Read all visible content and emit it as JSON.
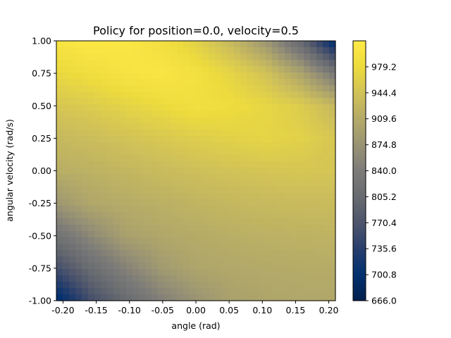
{
  "chart_data": {
    "type": "heatmap",
    "title": "Policy for position=0.0, velocity=0.5",
    "xlabel": "angle (rad)",
    "ylabel": "angular velocity (rad/s)",
    "xlim": [
      -0.21,
      0.21
    ],
    "ylim": [
      -1.0,
      1.0
    ],
    "x_ticks": [
      "-0.20",
      "-0.15",
      "-0.10",
      "-0.05",
      "0.00",
      "0.05",
      "0.10",
      "0.15",
      "0.20"
    ],
    "x_tick_values": [
      -0.2,
      -0.15,
      -0.1,
      -0.05,
      0.0,
      0.05,
      0.1,
      0.15,
      0.2
    ],
    "y_ticks": [
      "-1.00",
      "-0.75",
      "-0.50",
      "-0.25",
      "0.00",
      "0.25",
      "0.50",
      "0.75",
      "1.00"
    ],
    "y_tick_values": [
      -1.0,
      -0.75,
      -0.5,
      -0.25,
      0.0,
      0.25,
      0.5,
      0.75,
      1.0
    ],
    "colormap": "cividis",
    "colorbar": {
      "min": 666.0,
      "max": 1014.0,
      "ticks": [
        "666.0",
        "700.8",
        "735.6",
        "770.4",
        "805.2",
        "840.0",
        "874.8",
        "909.6",
        "944.4",
        "979.2"
      ],
      "tick_values": [
        666.0,
        700.8,
        735.6,
        770.4,
        805.2,
        840.0,
        874.8,
        909.6,
        944.4,
        979.2
      ]
    },
    "values_grid_note": "",
    "values": [
      [
        1000,
        1010,
        1005,
        990,
        965,
        930,
        880,
        800,
        690
      ],
      [
        975,
        985,
        998,
        1003,
        990,
        970,
        945,
        900,
        830
      ],
      [
        950,
        958,
        968,
        978,
        988,
        982,
        972,
        958,
        930
      ],
      [
        930,
        937,
        945,
        953,
        960,
        966,
        970,
        965,
        950
      ],
      [
        915,
        920,
        927,
        934,
        940,
        945,
        948,
        950,
        948
      ],
      [
        880,
        905,
        912,
        918,
        924,
        929,
        932,
        934,
        935
      ],
      [
        820,
        860,
        895,
        905,
        911,
        916,
        919,
        921,
        922
      ],
      [
        760,
        810,
        850,
        885,
        902,
        906,
        909,
        911,
        912
      ],
      [
        690,
        760,
        805,
        845,
        875,
        895,
        902,
        904,
        905
      ]
    ],
    "grid_y_values": [
      1.0,
      0.75,
      0.5,
      0.25,
      0.0,
      -0.25,
      -0.5,
      -0.75,
      -1.0
    ],
    "grid_x_values": [
      -0.21,
      -0.1575,
      -0.105,
      -0.0525,
      0.0,
      0.0525,
      0.105,
      0.1575,
      0.21
    ]
  }
}
